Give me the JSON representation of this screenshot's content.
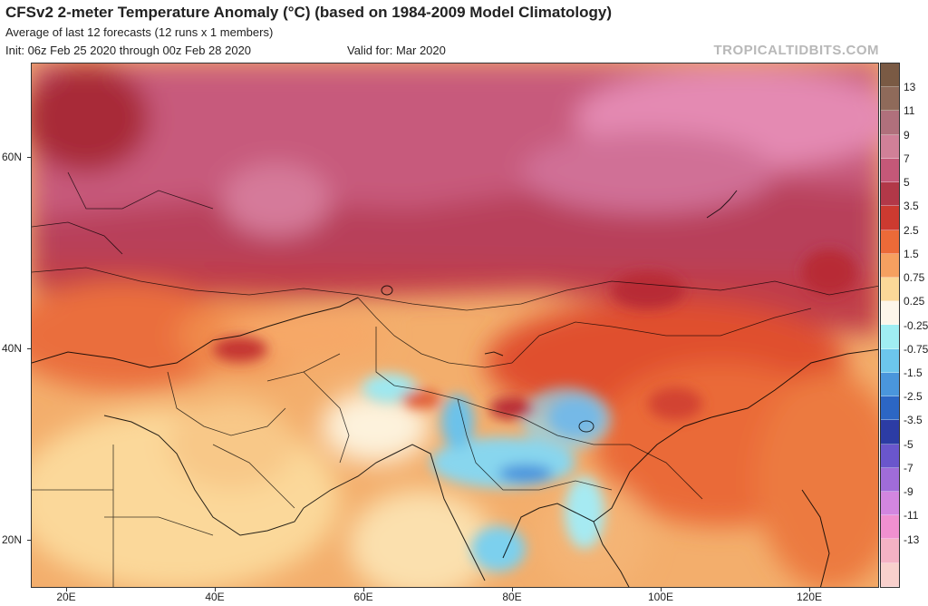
{
  "header": {
    "title": "CFSv2 2-meter Temperature Anomaly (°C) (based on 1984-2009 Model Climatology)",
    "subtitle": "Average of last 12 forecasts (12 runs x 1 members)",
    "init": "Init: 06z Feb 25 2020 through 00z Feb 28 2020",
    "valid": "Valid for: Mar 2020",
    "source": "TROPICALTIDBITS.COM"
  },
  "map": {
    "lat_labels": [
      "60N",
      "40N",
      "20N"
    ],
    "lon_labels": [
      "20E",
      "40E",
      "60E",
      "80E",
      "100E",
      "120E"
    ]
  },
  "colorbar": {
    "labels": [
      "13",
      "11",
      "9",
      "7",
      "5",
      "3.5",
      "2.5",
      "1.5",
      "0.75",
      "0.25",
      "-0.25",
      "-0.75",
      "-1.5",
      "-2.5",
      "-3.5",
      "-5",
      "-7",
      "-9",
      "-11",
      "-13"
    ],
    "colors": [
      "#7a5a44",
      "#8f6a5a",
      "#b0707c",
      "#d08098",
      "#c45878",
      "#b23848",
      "#cc3a30",
      "#ec6a38",
      "#f6a060",
      "#fbd898",
      "#fdf6ea",
      "#a0eef2",
      "#6cc6ec",
      "#4a96dc",
      "#2c66c4",
      "#2c3ca4",
      "#6a56cc",
      "#a06cd8",
      "#d286e0",
      "#f090d0",
      "#f4b2c4",
      "#f8d0cc"
    ]
  }
}
